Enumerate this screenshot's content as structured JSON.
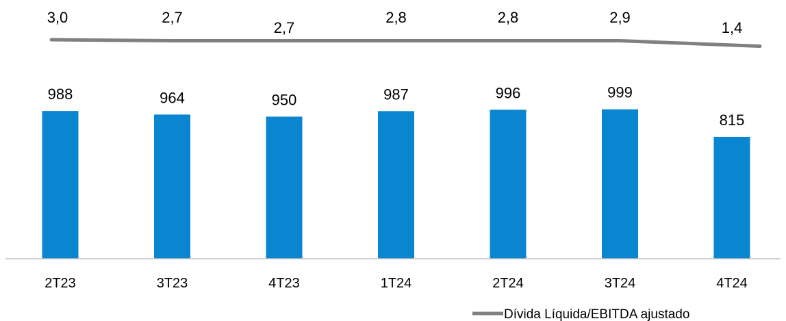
{
  "chart_data": {
    "type": "bar",
    "categories": [
      "2T23",
      "3T23",
      "4T23",
      "1T24",
      "2T24",
      "3T24",
      "4T24"
    ],
    "series": [
      {
        "values": [
          988,
          964,
          950,
          987,
          996,
          999,
          815
        ],
        "labels": [
          "988",
          "964",
          "950",
          "987",
          "996",
          "999",
          "815"
        ],
        "color": "#0A86D0"
      },
      {
        "name": "Dívida Líquida/EBITDA ajustado",
        "type": "line",
        "values": [
          3.0,
          2.7,
          2.7,
          2.8,
          2.8,
          2.9,
          1.4
        ],
        "labels": [
          "3,0",
          "2,7",
          "2,7",
          "2,8",
          "2,8",
          "2,9",
          "1,4"
        ],
        "color": "#808080"
      }
    ],
    "legend": {
      "position": "bottom-right",
      "entries": [
        "Dívida Líquida/EBITDA ajustado"
      ]
    },
    "axis_color": "#BFBFBF",
    "grid": false
  }
}
